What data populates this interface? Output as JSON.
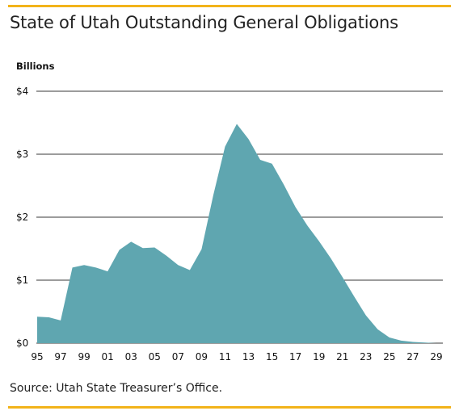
{
  "title": "State of Utah Outstanding General Obligations",
  "source": "Source: Utah State Treasurer’s Office.",
  "colors": {
    "accent_rule": "#f2b31a",
    "area_fill": "#5fa6b0",
    "gridline": "#3a3a3a"
  },
  "chart_data": {
    "type": "area",
    "title": "State of Utah Outstanding General Obligations",
    "ylabel": "Billions",
    "xlabel": "",
    "ylim": [
      0,
      4
    ],
    "xlim": [
      1995,
      2029
    ],
    "grid": true,
    "y_ticks": [
      {
        "value": 0,
        "label": "$0"
      },
      {
        "value": 1,
        "label": "$1"
      },
      {
        "value": 2,
        "label": "$2"
      },
      {
        "value": 3,
        "label": "$3"
      },
      {
        "value": 4,
        "label": "$4"
      }
    ],
    "x_ticks": [
      {
        "value": 1995,
        "label": "95"
      },
      {
        "value": 1997,
        "label": "97"
      },
      {
        "value": 1999,
        "label": "99"
      },
      {
        "value": 2001,
        "label": "01"
      },
      {
        "value": 2003,
        "label": "03"
      },
      {
        "value": 2005,
        "label": "05"
      },
      {
        "value": 2007,
        "label": "07"
      },
      {
        "value": 2009,
        "label": "09"
      },
      {
        "value": 2011,
        "label": "11"
      },
      {
        "value": 2013,
        "label": "13"
      },
      {
        "value": 2015,
        "label": "15"
      },
      {
        "value": 2017,
        "label": "17"
      },
      {
        "value": 2019,
        "label": "19"
      },
      {
        "value": 2021,
        "label": "21"
      },
      {
        "value": 2023,
        "label": "23"
      },
      {
        "value": 2025,
        "label": "25"
      },
      {
        "value": 2027,
        "label": "27"
      },
      {
        "value": 2029,
        "label": "29"
      }
    ],
    "x": [
      1995,
      1996,
      1997,
      1998,
      1999,
      2000,
      2001,
      2002,
      2003,
      2004,
      2005,
      2006,
      2007,
      2008,
      2009,
      2010,
      2011,
      2012,
      2013,
      2014,
      2015,
      2016,
      2017,
      2018,
      2019,
      2020,
      2021,
      2022,
      2023,
      2024,
      2025,
      2026,
      2027,
      2028,
      2029
    ],
    "values": [
      0.42,
      0.41,
      0.36,
      1.2,
      1.24,
      1.2,
      1.14,
      1.48,
      1.61,
      1.51,
      1.52,
      1.39,
      1.24,
      1.16,
      1.49,
      2.35,
      3.12,
      3.48,
      3.24,
      2.91,
      2.85,
      2.52,
      2.16,
      1.87,
      1.62,
      1.35,
      1.05,
      0.74,
      0.44,
      0.22,
      0.09,
      0.04,
      0.02,
      0.01,
      0.0
    ]
  }
}
